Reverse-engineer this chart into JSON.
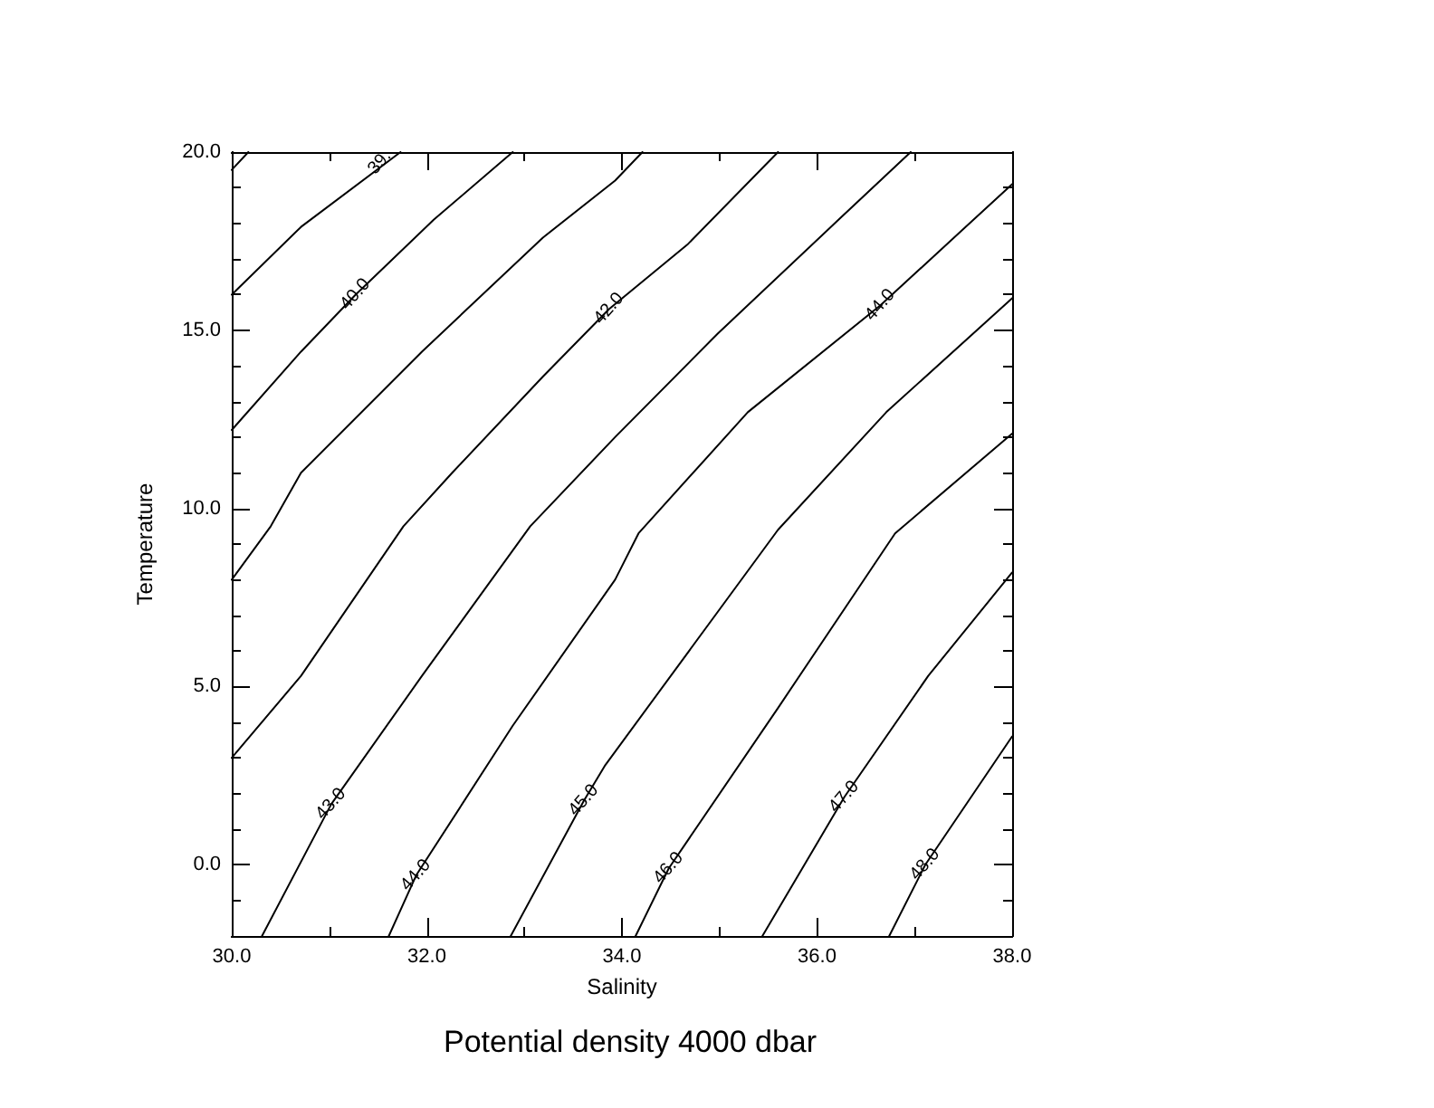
{
  "chart_data": {
    "type": "line",
    "title": "Potential density 4000 dbar",
    "xlabel": "Salinity",
    "ylabel": "Temperature",
    "xlim": [
      30,
      38
    ],
    "ylim": [
      -2,
      20
    ],
    "xticks": [
      {
        "value": 30,
        "label": "30.0"
      },
      {
        "value": 31,
        "label": null
      },
      {
        "value": 32,
        "label": "32.0"
      },
      {
        "value": 33,
        "label": null
      },
      {
        "value": 34,
        "label": "34.0"
      },
      {
        "value": 35,
        "label": null
      },
      {
        "value": 36,
        "label": "36.0"
      },
      {
        "value": 37,
        "label": null
      },
      {
        "value": 38,
        "label": "38.0"
      }
    ],
    "yticks": [
      {
        "value": -1,
        "label": null
      },
      {
        "value": 0,
        "label": "0.0"
      },
      {
        "value": 1,
        "label": null
      },
      {
        "value": 2,
        "label": null
      },
      {
        "value": 3,
        "label": null
      },
      {
        "value": 4,
        "label": null
      },
      {
        "value": 5,
        "label": "5.0"
      },
      {
        "value": 6,
        "label": null
      },
      {
        "value": 7,
        "label": null
      },
      {
        "value": 8,
        "label": null
      },
      {
        "value": 9,
        "label": null
      },
      {
        "value": 10,
        "label": "10.0"
      },
      {
        "value": 11,
        "label": null
      },
      {
        "value": 12,
        "label": null
      },
      {
        "value": 13,
        "label": null
      },
      {
        "value": 14,
        "label": null
      },
      {
        "value": 15,
        "label": "15.0"
      },
      {
        "value": 16,
        "label": null
      },
      {
        "value": 17,
        "label": null
      },
      {
        "value": 18,
        "label": null
      },
      {
        "value": 19,
        "label": null
      },
      {
        "value": 20,
        "label": "20.0"
      }
    ],
    "grid": false,
    "series": [
      {
        "color": "#000000",
        "x": [
          30.0,
          30.17
        ],
        "values": [
          19.5,
          20.0
        ]
      },
      {
        "color": "#000000",
        "x": [
          30.0,
          30.71,
          31.73
        ],
        "values": [
          16.0,
          17.9,
          20.0
        ]
      },
      {
        "color": "#000000",
        "x": [
          30.0,
          30.71,
          31.27,
          32.07,
          32.88
        ],
        "values": [
          12.2,
          14.4,
          16.0,
          18.1,
          20.0
        ]
      },
      {
        "color": "#000000",
        "x": [
          30.0,
          30.4,
          30.71,
          31.95,
          33.19,
          33.93,
          34.21
        ],
        "values": [
          8.0,
          9.5,
          11.0,
          14.4,
          17.6,
          19.2,
          20.0
        ]
      },
      {
        "color": "#000000",
        "x": [
          30.0,
          30.71,
          31.76,
          32.26,
          33.19,
          33.87,
          34.67,
          35.6
        ],
        "values": [
          3.0,
          5.3,
          9.5,
          11.0,
          13.7,
          15.6,
          17.4,
          20.0
        ]
      },
      {
        "color": "#000000",
        "x": [
          30.31,
          31.02,
          31.95,
          33.06,
          33.93,
          34.98,
          36.22,
          36.96
        ],
        "values": [
          -2.0,
          1.7,
          5.3,
          9.5,
          12.0,
          14.9,
          18.1,
          20.0
        ]
      },
      {
        "color": "#000000",
        "x": [
          31.61,
          31.89,
          32.88,
          33.93,
          34.17,
          35.29,
          36.65,
          38.0
        ],
        "values": [
          -2.0,
          -0.3,
          3.9,
          8.0,
          9.3,
          12.7,
          15.7,
          19.1
        ]
      },
      {
        "color": "#000000",
        "x": [
          32.86,
          33.61,
          33.83,
          35.6,
          36.71,
          38.0
        ],
        "values": [
          -2.0,
          1.8,
          2.8,
          9.4,
          12.7,
          15.9
        ]
      },
      {
        "color": "#000000",
        "x": [
          34.14,
          34.48,
          35.6,
          36.8,
          38.0
        ],
        "values": [
          -2.0,
          -0.1,
          4.4,
          9.3,
          12.1
        ]
      },
      {
        "color": "#000000",
        "x": [
          35.44,
          36.28,
          37.14,
          38.0
        ],
        "values": [
          -2.0,
          1.9,
          5.3,
          8.2
        ]
      },
      {
        "color": "#000000",
        "x": [
          36.74,
          37.11,
          38.0
        ],
        "values": [
          -2.0,
          0.0,
          3.6
        ]
      }
    ],
    "annotations": [
      {
        "text": "39.",
        "x": 31.52,
        "y": 19.7
      },
      {
        "text": "40.0",
        "x": 31.27,
        "y": 16.0
      },
      {
        "text": "42.0",
        "x": 33.87,
        "y": 15.6
      },
      {
        "text": "44.0",
        "x": 36.65,
        "y": 15.7
      },
      {
        "text": "43.0",
        "x": 31.02,
        "y": 1.7
      },
      {
        "text": "44.0",
        "x": 31.89,
        "y": -0.3
      },
      {
        "text": "45.0",
        "x": 33.61,
        "y": 1.8
      },
      {
        "text": "46.0",
        "x": 34.48,
        "y": -0.1
      },
      {
        "text": "47.0",
        "x": 36.28,
        "y": 1.9
      },
      {
        "text": "48.0",
        "x": 37.11,
        "y": 0.0
      }
    ]
  }
}
